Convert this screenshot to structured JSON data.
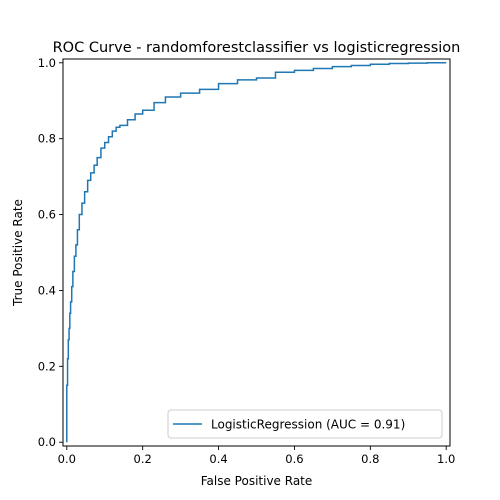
{
  "chart_data": {
    "type": "line",
    "title": "ROC Curve - randomforestclassifier vs logisticregression",
    "xlabel": "False Positive Rate",
    "ylabel": "True Positive Rate",
    "xlim": [
      -0.01,
      1.01
    ],
    "ylim": [
      -0.01,
      1.01
    ],
    "xticks": [
      0.0,
      0.2,
      0.4,
      0.6,
      0.8,
      1.0
    ],
    "xtick_labels": [
      "0.0",
      "0.2",
      "0.4",
      "0.6",
      "0.8",
      "1.0"
    ],
    "yticks": [
      0.0,
      0.2,
      0.4,
      0.6,
      0.8,
      1.0
    ],
    "ytick_labels": [
      "0.0",
      "0.2",
      "0.4",
      "0.6",
      "0.8",
      "1.0"
    ],
    "grid": false,
    "legend_position": "lower-right",
    "series": [
      {
        "name": "LogisticRegression (AUC = 0.91)",
        "color": "#1f77b4",
        "x": [
          0.0,
          0.0,
          0.002,
          0.004,
          0.006,
          0.008,
          0.01,
          0.013,
          0.016,
          0.02,
          0.024,
          0.028,
          0.033,
          0.04,
          0.047,
          0.055,
          0.063,
          0.072,
          0.08,
          0.09,
          0.1,
          0.11,
          0.12,
          0.13,
          0.14,
          0.16,
          0.18,
          0.2,
          0.23,
          0.26,
          0.3,
          0.35,
          0.4,
          0.45,
          0.5,
          0.55,
          0.6,
          0.65,
          0.7,
          0.75,
          0.8,
          0.85,
          0.9,
          0.95,
          1.0
        ],
        "y": [
          0.0,
          0.15,
          0.22,
          0.27,
          0.3,
          0.34,
          0.37,
          0.41,
          0.45,
          0.49,
          0.52,
          0.56,
          0.6,
          0.63,
          0.66,
          0.69,
          0.71,
          0.73,
          0.75,
          0.775,
          0.79,
          0.805,
          0.82,
          0.83,
          0.835,
          0.85,
          0.865,
          0.875,
          0.895,
          0.91,
          0.92,
          0.93,
          0.945,
          0.955,
          0.96,
          0.975,
          0.98,
          0.985,
          0.99,
          0.993,
          0.996,
          0.998,
          0.999,
          1.0,
          1.0
        ]
      }
    ]
  }
}
